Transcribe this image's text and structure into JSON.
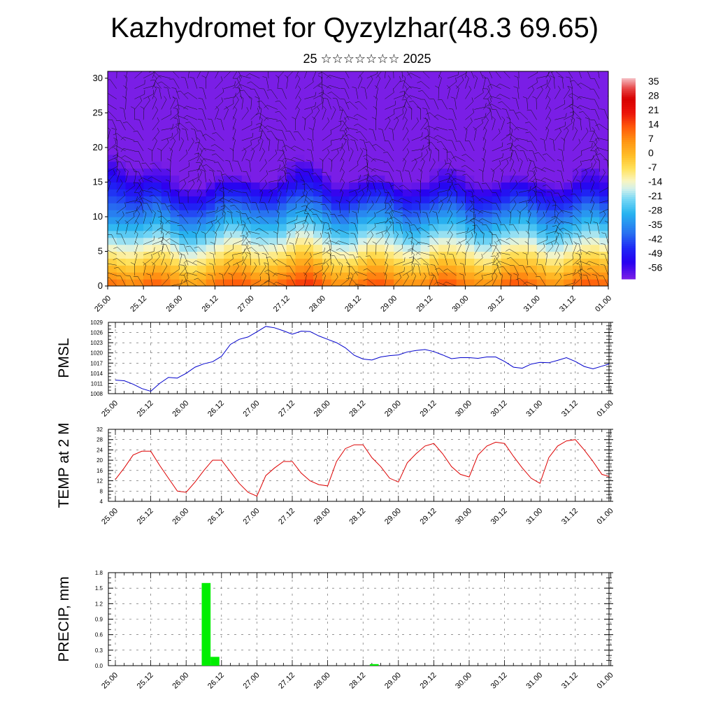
{
  "title": "Kazhydromet for Qyzylzhar(48.3 69.65)",
  "subtitle": "25 ☆☆☆☆☆☆☆ 2025",
  "time_labels": [
    "25.00",
    "25.12",
    "26.00",
    "26.12",
    "27.00",
    "27.12",
    "28.00",
    "28.12",
    "29.00",
    "29.12",
    "30.00",
    "30.12",
    "31.00",
    "31.12",
    "01.00"
  ],
  "colors": {
    "pmsl_line": "#0000cc",
    "temp_line": "#dd0000",
    "precip_bar": "#00ee00"
  },
  "chart_data": [
    {
      "type": "heatmap",
      "name": "cross-section",
      "ylim": [
        0,
        31
      ],
      "yticks": [
        "0",
        "5",
        "10",
        "15",
        "20",
        "25",
        "30"
      ],
      "colorbar_labels": [
        "35",
        "28",
        "21",
        "14",
        "7",
        "0",
        "-7",
        "-14",
        "-21",
        "-28",
        "-35",
        "-42",
        "-49",
        "-56"
      ],
      "colorbar_range": [
        -60,
        38
      ]
    },
    {
      "type": "line",
      "ylabel": "PMSL",
      "ylim": [
        1008,
        1029
      ],
      "yticks": [
        "1008",
        "1011",
        "1014",
        "1017",
        "1020",
        "1023",
        "1026",
        "1029"
      ],
      "values": [
        1012,
        1011.8,
        1010.8,
        1009.5,
        1008.7,
        1011,
        1012.8,
        1012.6,
        1014,
        1015.8,
        1016.8,
        1017.4,
        1019,
        1022.5,
        1024,
        1024.7,
        1026.2,
        1027.8,
        1027.4,
        1026.5,
        1025.5,
        1026.4,
        1026.3,
        1025,
        1024,
        1023,
        1021.5,
        1019.3,
        1018.2,
        1017.9,
        1018.8,
        1019.2,
        1019.4,
        1020.3,
        1020.7,
        1021,
        1020.4,
        1019.4,
        1018.3,
        1018.6,
        1018.6,
        1018.4,
        1018.8,
        1018.8,
        1017.5,
        1015.8,
        1015.5,
        1016.7,
        1017.2,
        1017.1,
        1017.8,
        1018.6,
        1017.5,
        1016,
        1015.3,
        1016.1,
        1016.9,
        1016.6,
        1017.2
      ]
    },
    {
      "type": "line",
      "ylabel": "TEMP at 2 M",
      "ylim": [
        4,
        32
      ],
      "yticks": [
        "4",
        "8",
        "12",
        "16",
        "20",
        "24",
        "28",
        "32"
      ],
      "values": [
        12.5,
        17,
        22,
        23.5,
        23.5,
        18,
        13,
        8,
        7.5,
        11.5,
        16,
        20,
        20,
        15.5,
        11,
        7.5,
        6,
        14,
        17,
        19.5,
        19.5,
        15,
        12,
        10.5,
        10,
        19.5,
        24.5,
        26,
        26,
        21,
        17.5,
        13,
        11.5,
        19,
        22.5,
        25.5,
        26.5,
        22.5,
        17.5,
        14.5,
        13.5,
        22,
        25.5,
        27,
        26.5,
        21.5,
        17,
        13,
        11,
        21,
        25.5,
        27.5,
        28,
        24,
        19.5,
        14.5,
        13.5
      ]
    },
    {
      "type": "bar",
      "ylabel": "PRECIP, mm",
      "ylim": [
        0,
        1.8
      ],
      "yticks": [
        "0.0",
        "0.3",
        "0.6",
        "0.9",
        "1.2",
        "1.5",
        "1.8"
      ],
      "bars": [
        {
          "t": 10,
          "value": 1.6
        },
        {
          "t": 11,
          "value": 0.17
        },
        {
          "t": 29,
          "value": 0.03
        }
      ]
    }
  ]
}
